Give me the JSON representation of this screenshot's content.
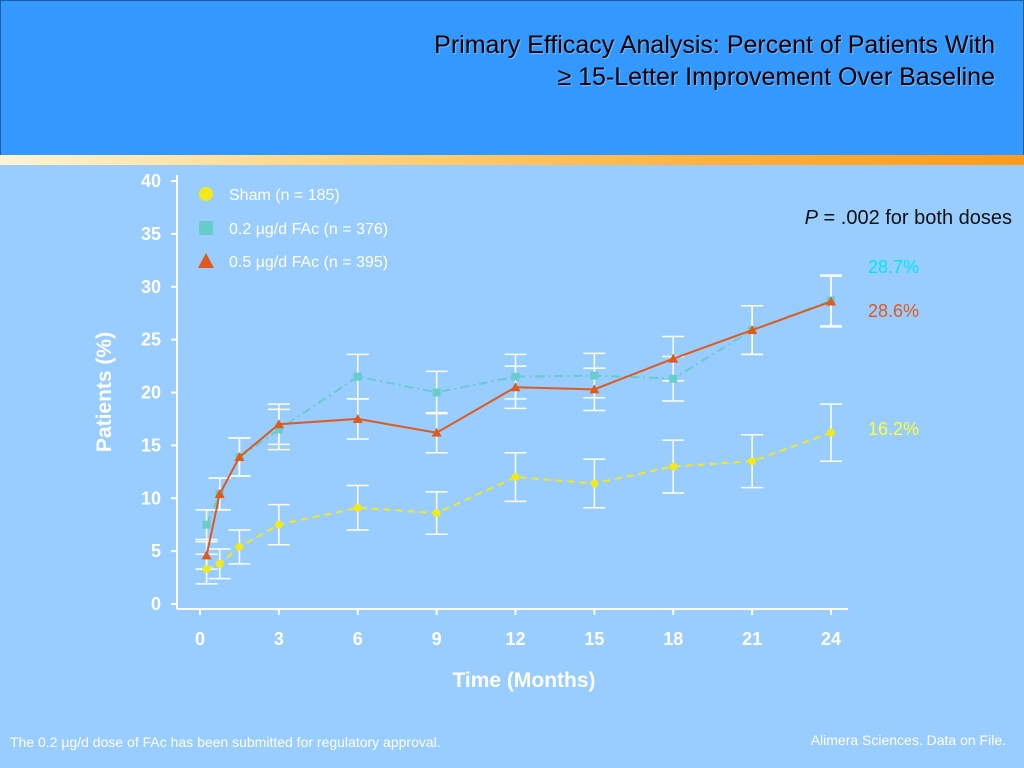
{
  "header": {
    "title_line1": "Primary Efficacy Analysis: Percent of Patients With",
    "title_line2": "≥ 15-Letter Improvement Over Baseline"
  },
  "footer": {
    "left_note": "The 0.2 µg/d dose of FAc has been submitted for regulatory approval.",
    "right_note": "Alimera Sciences. Data on File."
  },
  "annotation": {
    "p_symbol": "P",
    "p_text": " = .002 for both doses"
  },
  "end_labels": [
    {
      "text": "28.7%",
      "color": "#00e5ff"
    },
    {
      "text": "28.6%",
      "color": "#e05a1a"
    },
    {
      "text": "16.2%",
      "color": "#ffff33"
    }
  ],
  "colors": {
    "background": "#99ccff",
    "header": "#3399ff",
    "sham": "#f2e81a",
    "low_dose": "#66cccc",
    "high_dose": "#e05a1a",
    "axis": "#ffffff"
  },
  "chart_data": {
    "type": "line",
    "title": "",
    "xlabel": "Time (Months)",
    "ylabel": "Patients (%)",
    "xlim": [
      0,
      24
    ],
    "ylim": [
      0,
      40
    ],
    "x_ticks": [
      0,
      3,
      6,
      9,
      12,
      15,
      18,
      21,
      24
    ],
    "y_ticks": [
      0,
      5,
      10,
      15,
      20,
      25,
      30,
      35,
      40
    ],
    "grid": false,
    "legend_position": "top-left",
    "series": [
      {
        "name": "Sham (n = 185)",
        "marker": "circle",
        "line_style": "dashed",
        "color": "#f2e81a",
        "x": [
          0.25,
          0.75,
          1.5,
          3,
          6,
          9,
          12,
          15,
          18,
          21,
          24
        ],
        "y": [
          3.3,
          3.8,
          5.4,
          7.5,
          9.1,
          8.6,
          12.0,
          11.4,
          13.0,
          13.5,
          16.2
        ],
        "error": [
          1.4,
          1.4,
          1.6,
          1.9,
          2.1,
          2.0,
          2.3,
          2.3,
          2.5,
          2.5,
          2.7
        ]
      },
      {
        "name": "0.2 µg/d FAc (n = 376)",
        "marker": "square",
        "line_style": "dash-dot",
        "color": "#66cccc",
        "x": [
          0.25,
          0.75,
          1.5,
          3,
          6,
          9,
          12,
          15,
          18,
          21,
          24
        ],
        "y": [
          7.5,
          10.4,
          13.9,
          16.5,
          21.5,
          20.0,
          21.5,
          21.6,
          21.3,
          25.9,
          28.7
        ],
        "error": [
          1.4,
          1.5,
          1.8,
          1.9,
          2.1,
          2.0,
          2.1,
          2.1,
          2.1,
          2.3,
          2.4
        ]
      },
      {
        "name": "0.5 µg/d FAc (n = 395)",
        "marker": "triangle",
        "line_style": "solid",
        "color": "#e05a1a",
        "x": [
          0.25,
          0.75,
          1.5,
          3,
          6,
          9,
          12,
          15,
          18,
          21,
          24
        ],
        "y": [
          4.6,
          10.4,
          13.9,
          17.0,
          17.5,
          16.2,
          20.5,
          20.3,
          23.2,
          25.9,
          28.6
        ],
        "error": [
          1.3,
          1.5,
          1.8,
          1.9,
          1.9,
          1.9,
          2.0,
          2.0,
          2.1,
          2.3,
          2.4
        ]
      }
    ]
  }
}
